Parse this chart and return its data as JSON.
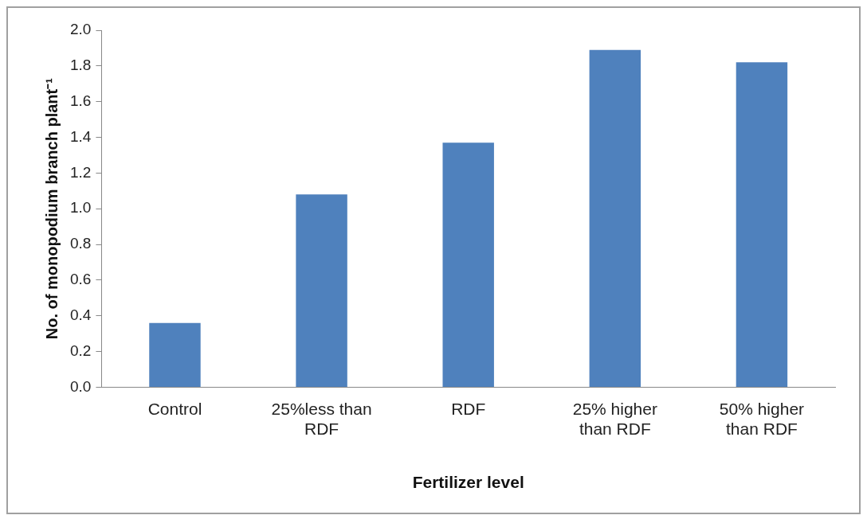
{
  "chart_data": {
    "type": "bar",
    "xlabel": "Fertilizer level",
    "ylabel": "No. of monopodium branch plant⁻¹",
    "categories": [
      "Control",
      "25%less than RDF",
      "RDF",
      "25% higher than RDF",
      "50% higher than RDF"
    ],
    "values": [
      0.36,
      1.08,
      1.37,
      1.89,
      1.82
    ],
    "color": "#4f81bd",
    "ylim": [
      0,
      2
    ],
    "yticks": [
      {
        "value": 0,
        "label": "0.0"
      },
      0.2,
      0.4,
      0.6,
      0.8,
      {
        "value": 1,
        "label": "1.0"
      },
      1.2,
      1.4,
      1.6,
      1.8,
      {
        "value": 2,
        "label": "2.0"
      }
    ],
    "grid": false,
    "legend": false
  }
}
